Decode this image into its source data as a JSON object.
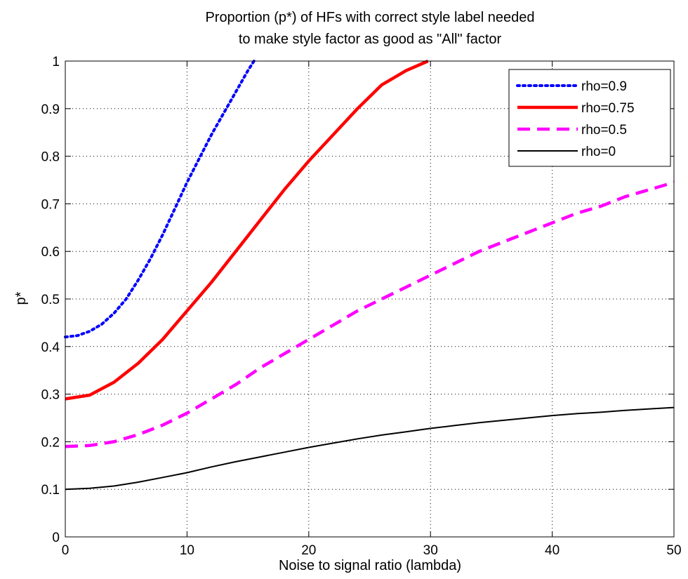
{
  "chart_data": {
    "type": "line",
    "title": [
      "Proportion (p*) of HFs with correct style label needed",
      "to make style factor as good as \"All\" factor"
    ],
    "xlabel": "Noise to signal ratio (lambda)",
    "ylabel": "p*",
    "xlim": [
      0,
      50
    ],
    "ylim": [
      0,
      1
    ],
    "xticks": [
      0,
      10,
      20,
      30,
      40,
      50
    ],
    "xtick_labels": [
      "0",
      "10",
      "20",
      "30",
      "40",
      "50"
    ],
    "yticks": [
      0,
      0.1,
      0.2,
      0.3,
      0.4,
      0.5,
      0.6,
      0.7,
      0.8,
      0.9,
      1
    ],
    "ytick_labels": [
      "0",
      "0.1",
      "0.2",
      "0.3",
      "0.4",
      "0.5",
      "0.6",
      "0.7",
      "0.8",
      "0.9",
      "1"
    ],
    "grid": true,
    "legend_position": "top-right",
    "series": [
      {
        "name": "rho=0.9",
        "color": "#0000ff",
        "style": "dotted",
        "x": [
          0,
          1,
          2,
          3,
          4,
          5,
          6,
          7,
          8,
          9,
          10,
          11,
          12,
          13,
          14,
          15,
          15.5
        ],
        "y": [
          0.42,
          0.423,
          0.432,
          0.447,
          0.47,
          0.5,
          0.54,
          0.585,
          0.635,
          0.69,
          0.745,
          0.795,
          0.845,
          0.89,
          0.935,
          0.98,
          1.0
        ]
      },
      {
        "name": "rho=0.75",
        "color": "#ff0000",
        "style": "solid",
        "x": [
          0,
          2,
          4,
          6,
          8,
          10,
          12,
          14,
          16,
          18,
          20,
          22,
          24,
          26,
          28,
          29.8
        ],
        "y": [
          0.29,
          0.298,
          0.325,
          0.365,
          0.415,
          0.475,
          0.535,
          0.6,
          0.665,
          0.73,
          0.79,
          0.845,
          0.9,
          0.95,
          0.98,
          1.0
        ]
      },
      {
        "name": "rho=0.5",
        "color": "#ff00ff",
        "style": "dashed",
        "x": [
          0,
          2,
          4,
          6,
          8,
          10,
          12,
          14,
          16,
          18,
          20,
          22,
          24,
          26,
          28,
          30,
          32,
          34,
          36,
          38,
          40,
          42,
          44,
          46,
          48,
          50
        ],
        "y": [
          0.19,
          0.192,
          0.2,
          0.215,
          0.235,
          0.26,
          0.29,
          0.32,
          0.355,
          0.385,
          0.415,
          0.445,
          0.475,
          0.5,
          0.525,
          0.55,
          0.575,
          0.6,
          0.62,
          0.64,
          0.66,
          0.68,
          0.695,
          0.715,
          0.73,
          0.745
        ]
      },
      {
        "name": "rho=0",
        "color": "#000000",
        "style": "solid-thin",
        "x": [
          0,
          2,
          4,
          6,
          8,
          10,
          12,
          14,
          16,
          18,
          20,
          22,
          24,
          26,
          28,
          30,
          32,
          34,
          36,
          38,
          40,
          42,
          44,
          46,
          48,
          50
        ],
        "y": [
          0.1,
          0.102,
          0.107,
          0.115,
          0.125,
          0.135,
          0.147,
          0.158,
          0.168,
          0.178,
          0.188,
          0.197,
          0.206,
          0.214,
          0.221,
          0.228,
          0.234,
          0.24,
          0.245,
          0.25,
          0.255,
          0.259,
          0.262,
          0.266,
          0.269,
          0.272
        ]
      }
    ]
  }
}
